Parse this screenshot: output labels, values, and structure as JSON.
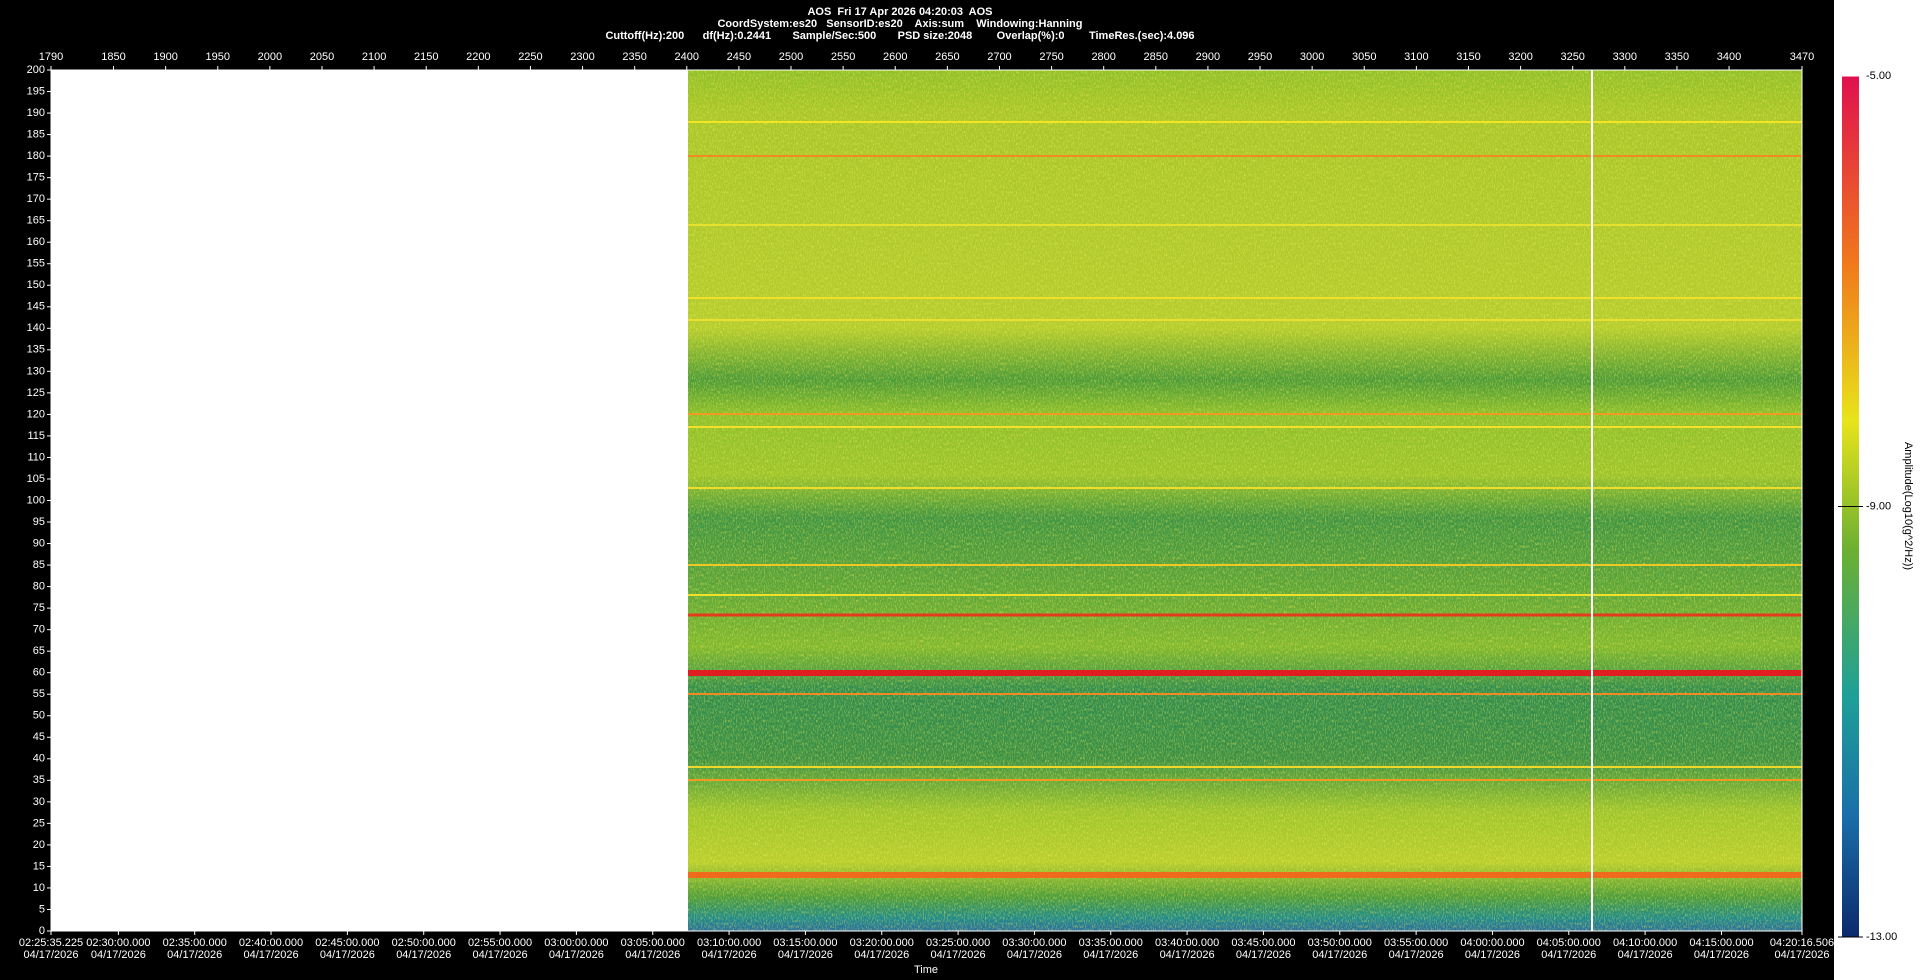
{
  "chart_data": {
    "type": "spectrogram",
    "title": "AOS  Fri 17 Apr 2026 04:20:03  AOS",
    "subtitle": [
      "CoordSystem:es20   SensorID:es20    Axis:sum    Windowing:Hanning",
      "Cuttoff(Hz):200      df(Hz):0.2441       Sample/Sec:500       PSD size:2048        Overlap(%):0        TimeRes.(sec):4.096"
    ],
    "xlabel": "Time",
    "x2lim": [
      1790,
      3470
    ],
    "x2ticks": [
      1790,
      1850,
      1900,
      1950,
      2000,
      2050,
      2100,
      2150,
      2200,
      2250,
      2300,
      2350,
      2400,
      2450,
      2500,
      2550,
      2600,
      2650,
      2700,
      2750,
      2800,
      2850,
      2900,
      2950,
      3000,
      3050,
      3100,
      3150,
      3200,
      3250,
      3300,
      3350,
      3400,
      3470
    ],
    "xlim": [
      8735.225,
      15616.506
    ],
    "xticks": [
      {
        "value": 8735.225,
        "label": "02:25:35.225",
        "date": "04/17/2026"
      },
      {
        "value": 9000,
        "label": "02:30:00.000",
        "date": "04/17/2026"
      },
      {
        "value": 9300,
        "label": "02:35:00.000",
        "date": "04/17/2026"
      },
      {
        "value": 9600,
        "label": "02:40:00.000",
        "date": "04/17/2026"
      },
      {
        "value": 9900,
        "label": "02:45:00.000",
        "date": "04/17/2026"
      },
      {
        "value": 10200,
        "label": "02:50:00.000",
        "date": "04/17/2026"
      },
      {
        "value": 10500,
        "label": "02:55:00.000",
        "date": "04/17/2026"
      },
      {
        "value": 10800,
        "label": "03:00:00.000",
        "date": "04/17/2026"
      },
      {
        "value": 11100,
        "label": "03:05:00.000",
        "date": "04/17/2026"
      },
      {
        "value": 11400,
        "label": "03:10:00.000",
        "date": "04/17/2026"
      },
      {
        "value": 11700,
        "label": "03:15:00.000",
        "date": "04/17/2026"
      },
      {
        "value": 12000,
        "label": "03:20:00.000",
        "date": "04/17/2026"
      },
      {
        "value": 12300,
        "label": "03:25:00.000",
        "date": "04/17/2026"
      },
      {
        "value": 12600,
        "label": "03:30:00.000",
        "date": "04/17/2026"
      },
      {
        "value": 12900,
        "label": "03:35:00.000",
        "date": "04/17/2026"
      },
      {
        "value": 13200,
        "label": "03:40:00.000",
        "date": "04/17/2026"
      },
      {
        "value": 13500,
        "label": "03:45:00.000",
        "date": "04/17/2026"
      },
      {
        "value": 13800,
        "label": "03:50:00.000",
        "date": "04/17/2026"
      },
      {
        "value": 14100,
        "label": "03:55:00.000",
        "date": "04/17/2026"
      },
      {
        "value": 14400,
        "label": "04:00:00.000",
        "date": "04/17/2026"
      },
      {
        "value": 14700,
        "label": "04:05:00.000",
        "date": "04/17/2026"
      },
      {
        "value": 15000,
        "label": "04:10:00.000",
        "date": "04/17/2026"
      },
      {
        "value": 15300,
        "label": "04:15:00.000",
        "date": "04/17/2026"
      },
      {
        "value": 15616.506,
        "label": "04:20:16.506",
        "date": "04/17/2026"
      }
    ],
    "ylim": [
      0,
      200
    ],
    "yticks": [
      0,
      5,
      10,
      15,
      20,
      25,
      30,
      35,
      40,
      45,
      50,
      55,
      60,
      65,
      70,
      75,
      80,
      85,
      90,
      95,
      100,
      105,
      110,
      115,
      120,
      125,
      130,
      135,
      140,
      145,
      150,
      155,
      160,
      165,
      170,
      175,
      180,
      185,
      190,
      195,
      200
    ],
    "colorbar": {
      "label": "Amplitude(Log10(g^2/Hz))",
      "lim": [
        -13,
        -5
      ],
      "ticks": [
        {
          "value": -13,
          "label": "-13.00"
        },
        {
          "value": -9,
          "label": "-9.00"
        },
        {
          "value": -5,
          "label": "-5.00"
        }
      ]
    }
  }
}
